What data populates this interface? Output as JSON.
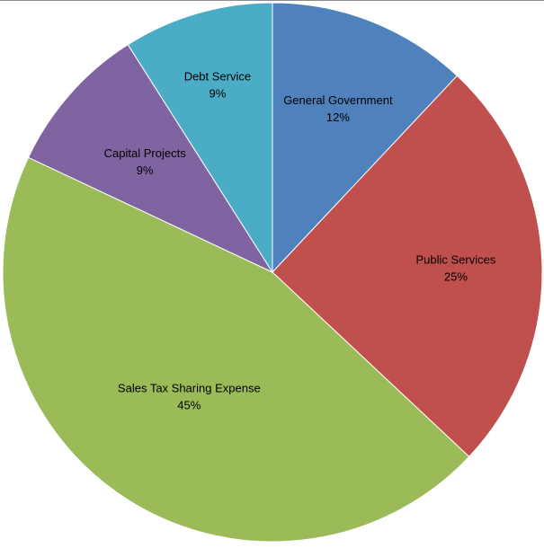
{
  "chart_data": {
    "type": "pie",
    "title": "",
    "slices": [
      {
        "label": "General Government",
        "value": 12,
        "value_label": "12%",
        "color": "#4F81BD"
      },
      {
        "label": "Public Services",
        "value": 25,
        "value_label": "25%",
        "color": "#C0504D"
      },
      {
        "label": "Sales Tax Sharing Expense",
        "value": 45,
        "value_label": "45%",
        "color": "#9BBB59"
      },
      {
        "label": "Capital Projects",
        "value": 9,
        "value_label": "9%",
        "color": "#8064A2"
      },
      {
        "label": "Debt Service",
        "value": 9,
        "value_label": "9%",
        "color": "#4BACC6"
      }
    ],
    "start_angle_deg": 0,
    "direction": "clockwise",
    "legend": "none",
    "data_labels": "inside"
  }
}
